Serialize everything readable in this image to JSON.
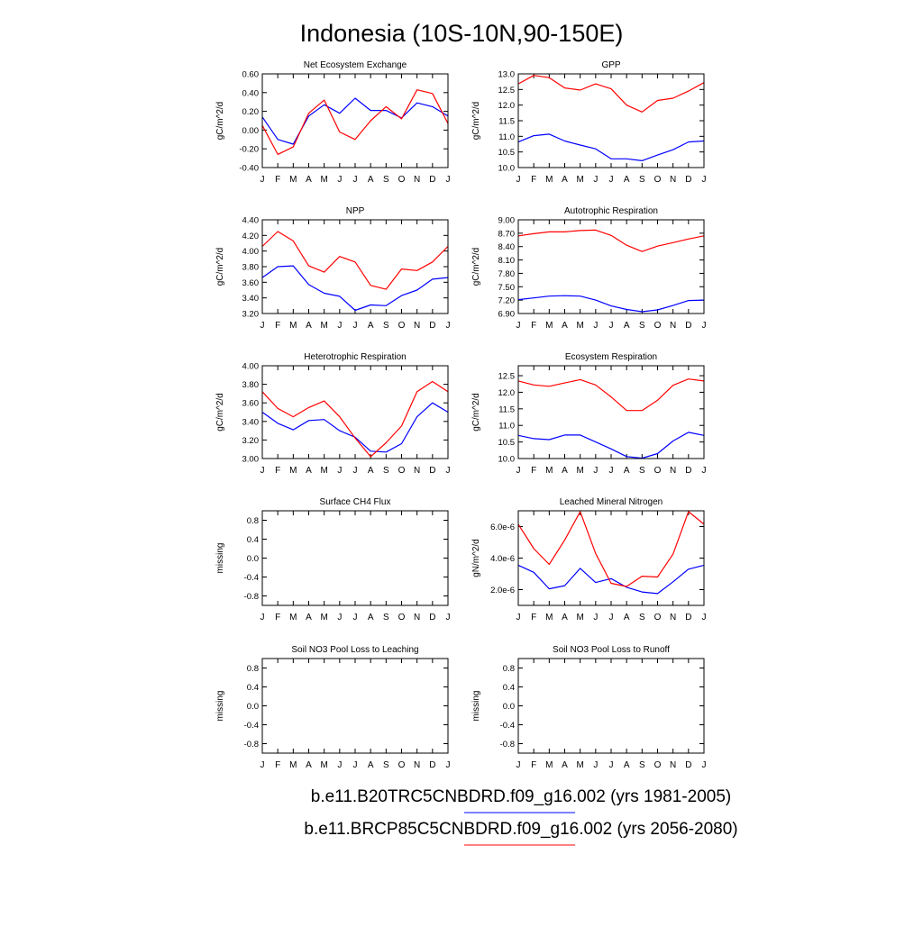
{
  "page": {
    "title": "Indonesia (10S-10N,90-150E)",
    "legend": [
      {
        "label": "b.e11.B20TRC5CNBDRD.f09_g16.002 (yrs 1981-2005)",
        "color": "#0000ff"
      },
      {
        "label": "b.e11.BRCP85C5CNBDRD.f09_g16.002 (yrs 2056-2080)",
        "color": "#ff0000"
      }
    ]
  },
  "chart_data": [
    {
      "type": "line",
      "title": "Net Ecosystem Exchange",
      "ylabel": "gC/m^2/d",
      "categories": [
        "J",
        "F",
        "M",
        "A",
        "M",
        "J",
        "J",
        "A",
        "S",
        "O",
        "N",
        "D",
        "J"
      ],
      "ylim": [
        -0.4,
        0.6
      ],
      "yticks": [
        -0.4,
        -0.2,
        0.0,
        0.2,
        0.4,
        0.6
      ],
      "ytick_labels": [
        "-0.40",
        "-0.20",
        "0.00",
        "0.20",
        "0.40",
        "0.60"
      ],
      "series": [
        {
          "color": "#0000ff",
          "values": [
            0.14,
            -0.1,
            -0.15,
            0.15,
            0.27,
            0.18,
            0.34,
            0.21,
            0.21,
            0.13,
            0.29,
            0.25,
            0.15
          ]
        },
        {
          "color": "#ff0000",
          "values": [
            0.05,
            -0.26,
            -0.18,
            0.18,
            0.32,
            -0.02,
            -0.1,
            0.1,
            0.25,
            0.12,
            0.43,
            0.39,
            0.07
          ]
        }
      ]
    },
    {
      "type": "line",
      "title": "GPP",
      "ylabel": "gC/m^2/d",
      "categories": [
        "J",
        "F",
        "M",
        "A",
        "M",
        "J",
        "J",
        "A",
        "S",
        "O",
        "N",
        "D",
        "J"
      ],
      "ylim": [
        10.0,
        13.0
      ],
      "yticks": [
        10.0,
        10.5,
        11.0,
        11.5,
        12.0,
        12.5,
        13.0
      ],
      "ytick_labels": [
        "10.0",
        "10.5",
        "11.0",
        "11.5",
        "12.0",
        "12.5",
        "13.0"
      ],
      "series": [
        {
          "color": "#0000ff",
          "values": [
            10.82,
            11.02,
            11.07,
            10.85,
            10.72,
            10.6,
            10.28,
            10.28,
            10.22,
            10.4,
            10.57,
            10.82,
            10.85
          ]
        },
        {
          "color": "#ff0000",
          "values": [
            12.68,
            12.95,
            12.88,
            12.55,
            12.48,
            12.68,
            12.52,
            12.0,
            11.78,
            12.15,
            12.22,
            12.45,
            12.72
          ]
        }
      ]
    },
    {
      "type": "line",
      "title": "NPP",
      "ylabel": "gC/m^2/d",
      "categories": [
        "J",
        "F",
        "M",
        "A",
        "M",
        "J",
        "J",
        "A",
        "S",
        "O",
        "N",
        "D",
        "J"
      ],
      "ylim": [
        3.2,
        4.4
      ],
      "yticks": [
        3.2,
        3.4,
        3.6,
        3.8,
        4.0,
        4.2,
        4.4
      ],
      "ytick_labels": [
        "3.20",
        "3.40",
        "3.60",
        "3.80",
        "4.00",
        "4.20",
        "4.40"
      ],
      "series": [
        {
          "color": "#0000ff",
          "values": [
            3.66,
            3.8,
            3.81,
            3.57,
            3.46,
            3.42,
            3.24,
            3.31,
            3.3,
            3.43,
            3.5,
            3.64,
            3.66
          ]
        },
        {
          "color": "#ff0000",
          "values": [
            4.06,
            4.25,
            4.13,
            3.81,
            3.73,
            3.93,
            3.86,
            3.56,
            3.51,
            3.77,
            3.75,
            3.86,
            4.06
          ]
        }
      ]
    },
    {
      "type": "line",
      "title": "Autotrophic Respiration",
      "ylabel": "gC/m^2/d",
      "categories": [
        "J",
        "F",
        "M",
        "A",
        "M",
        "J",
        "J",
        "A",
        "S",
        "O",
        "N",
        "D",
        "J"
      ],
      "ylim": [
        6.9,
        9.0
      ],
      "yticks": [
        6.9,
        7.2,
        7.5,
        7.8,
        8.1,
        8.4,
        8.7,
        9.0
      ],
      "ytick_labels": [
        "6.90",
        "7.20",
        "7.50",
        "7.80",
        "8.10",
        "8.40",
        "8.70",
        "9.00"
      ],
      "series": [
        {
          "color": "#0000ff",
          "values": [
            7.21,
            7.25,
            7.29,
            7.3,
            7.29,
            7.2,
            7.07,
            6.99,
            6.94,
            6.98,
            7.08,
            7.19,
            7.2
          ]
        },
        {
          "color": "#ff0000",
          "values": [
            8.64,
            8.69,
            8.73,
            8.73,
            8.76,
            8.77,
            8.65,
            8.43,
            8.29,
            8.41,
            8.49,
            8.57,
            8.64
          ]
        }
      ]
    },
    {
      "type": "line",
      "title": "Heterotrophic Respiration",
      "ylabel": "gC/m^2/d",
      "categories": [
        "J",
        "F",
        "M",
        "A",
        "M",
        "J",
        "J",
        "A",
        "S",
        "O",
        "N",
        "D",
        "J"
      ],
      "ylim": [
        3.0,
        4.0
      ],
      "yticks": [
        3.0,
        3.2,
        3.4,
        3.6,
        3.8,
        4.0
      ],
      "ytick_labels": [
        "3.00",
        "3.20",
        "3.40",
        "3.60",
        "3.80",
        "4.00"
      ],
      "series": [
        {
          "color": "#0000ff",
          "values": [
            3.5,
            3.38,
            3.31,
            3.41,
            3.42,
            3.3,
            3.23,
            3.08,
            3.07,
            3.16,
            3.45,
            3.6,
            3.5
          ]
        },
        {
          "color": "#ff0000",
          "values": [
            3.72,
            3.54,
            3.45,
            3.55,
            3.62,
            3.45,
            3.22,
            3.02,
            3.17,
            3.35,
            3.72,
            3.83,
            3.72
          ]
        }
      ]
    },
    {
      "type": "line",
      "title": "Ecosystem Respiration",
      "ylabel": "gC/m^2/d",
      "categories": [
        "J",
        "F",
        "M",
        "A",
        "M",
        "J",
        "J",
        "A",
        "S",
        "O",
        "N",
        "D",
        "J"
      ],
      "ylim": [
        10.0,
        12.8
      ],
      "yticks": [
        10.0,
        10.5,
        11.0,
        11.5,
        12.0,
        12.5
      ],
      "ytick_labels": [
        "10.0",
        "10.5",
        "11.0",
        "11.5",
        "12.0",
        "12.5"
      ],
      "series": [
        {
          "color": "#0000ff",
          "values": [
            10.7,
            10.6,
            10.57,
            10.71,
            10.71,
            10.5,
            10.29,
            10.06,
            10.01,
            10.15,
            10.53,
            10.79,
            10.7
          ]
        },
        {
          "color": "#ff0000",
          "values": [
            12.34,
            12.22,
            12.18,
            12.28,
            12.38,
            12.22,
            11.86,
            11.45,
            11.45,
            11.76,
            12.21,
            12.4,
            12.34
          ]
        }
      ]
    },
    {
      "type": "line",
      "title": "Surface CH4 Flux",
      "ylabel": "missing",
      "categories": [
        "J",
        "F",
        "M",
        "A",
        "M",
        "J",
        "J",
        "A",
        "S",
        "O",
        "N",
        "D",
        "J"
      ],
      "ylim": [
        -1.0,
        1.0
      ],
      "yticks": [
        -0.8,
        -0.4,
        0.0,
        0.4,
        0.8
      ],
      "ytick_labels": [
        "-0.8",
        "-0.4",
        "0.0",
        "0.4",
        "0.8"
      ],
      "series": []
    },
    {
      "type": "line",
      "title": "Leached Mineral Nitrogen",
      "ylabel": "gN/m^2/d",
      "categories": [
        "J",
        "F",
        "M",
        "A",
        "M",
        "J",
        "J",
        "A",
        "S",
        "O",
        "N",
        "D",
        "J"
      ],
      "ylim": [
        1e-06,
        7e-06
      ],
      "yticks": [
        2e-06,
        4e-06,
        6e-06
      ],
      "ytick_labels": [
        "2.0e-6",
        "4.0e-6",
        "6.0e-6"
      ],
      "series": [
        {
          "color": "#0000ff",
          "values": [
            3.55e-06,
            3.1e-06,
            2.05e-06,
            2.25e-06,
            3.35e-06,
            2.45e-06,
            2.7e-06,
            2.15e-06,
            1.85e-06,
            1.75e-06,
            2.5e-06,
            3.3e-06,
            3.55e-06
          ]
        },
        {
          "color": "#ff0000",
          "values": [
            6.15e-06,
            4.6e-06,
            3.6e-06,
            5.15e-06,
            6.95e-06,
            4.3e-06,
            2.4e-06,
            2.2e-06,
            2.85e-06,
            2.8e-06,
            4.25e-06,
            6.95e-06,
            6.15e-06
          ]
        }
      ]
    },
    {
      "type": "line",
      "title": "Soil NO3 Pool Loss to Leaching",
      "ylabel": "missing",
      "categories": [
        "J",
        "F",
        "M",
        "A",
        "M",
        "J",
        "J",
        "A",
        "S",
        "O",
        "N",
        "D",
        "J"
      ],
      "ylim": [
        -1.0,
        1.0
      ],
      "yticks": [
        -0.8,
        -0.4,
        0.0,
        0.4,
        0.8
      ],
      "ytick_labels": [
        "-0.8",
        "-0.4",
        "0.0",
        "0.4",
        "0.8"
      ],
      "series": []
    },
    {
      "type": "line",
      "title": "Soil NO3 Pool Loss to Runoff",
      "ylabel": "missing",
      "categories": [
        "J",
        "F",
        "M",
        "A",
        "M",
        "J",
        "J",
        "A",
        "S",
        "O",
        "N",
        "D",
        "J"
      ],
      "ylim": [
        -1.0,
        1.0
      ],
      "yticks": [
        -0.8,
        -0.4,
        0.0,
        0.4,
        0.8
      ],
      "ytick_labels": [
        "-0.8",
        "-0.4",
        "0.0",
        "0.4",
        "0.8"
      ],
      "series": []
    }
  ]
}
